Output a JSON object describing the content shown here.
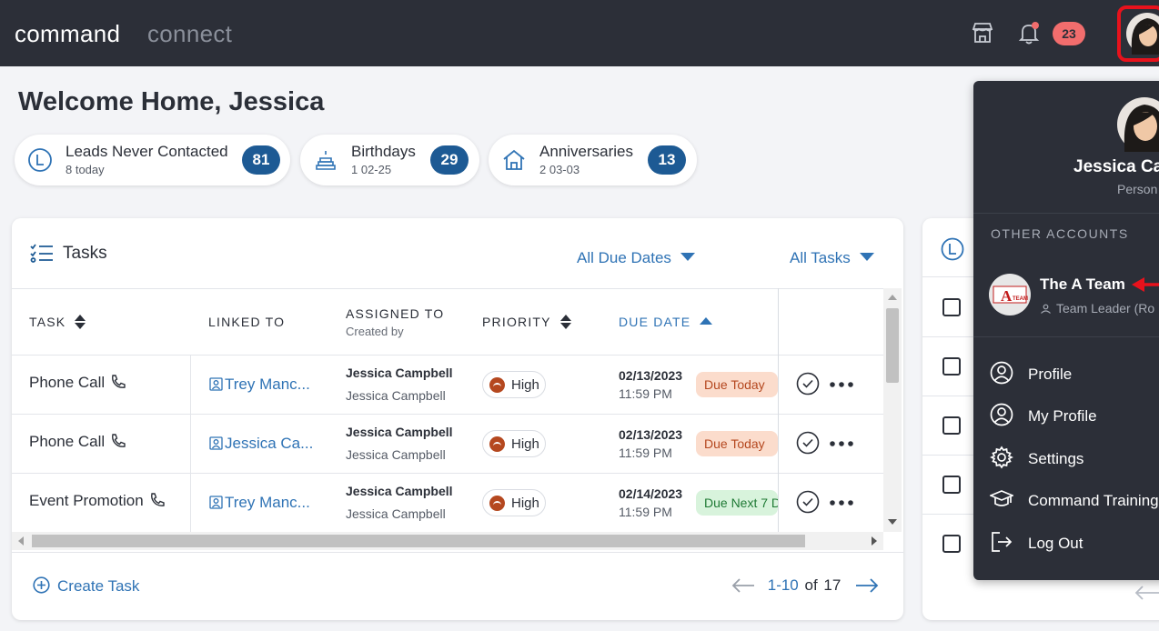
{
  "topbar": {
    "brand_primary": "command",
    "brand_secondary": "connect",
    "notification_count": "23",
    "colors": {
      "bar": "#2c2f38",
      "badge": "#f26d6d",
      "highlight": "#e8121c"
    },
    "icons": [
      "storefront-icon",
      "bell-icon",
      "user-avatar"
    ]
  },
  "welcome": {
    "title": "Welcome Home, Jessica"
  },
  "stats": [
    {
      "title": "Leads Never Contacted",
      "sub": "8 today",
      "count": "81",
      "icon": "lead-icon"
    },
    {
      "title": "Birthdays",
      "sub": "1 02-25",
      "count": "29",
      "icon": "cake-icon"
    },
    {
      "title": "Anniversaries",
      "sub": "2 03-03",
      "count": "13",
      "icon": "home-icon"
    }
  ],
  "tasks": {
    "title": "Tasks",
    "filters": {
      "due": "All Due Dates",
      "tasks": "All Tasks"
    },
    "columns": {
      "task": "TASK",
      "linked": "LINKED TO",
      "assigned": "ASSIGNED TO",
      "assigned_sub": "Created by",
      "priority": "PRIORITY",
      "due": "DUE DATE"
    },
    "rows": [
      {
        "task": "Phone Call",
        "linked": "Trey Manc...",
        "assigned": "Jessica Campbell",
        "created": "Jessica Campbell",
        "priority": "High",
        "date": "02/13/2023",
        "time": "11:59 PM",
        "status": "Due Today"
      },
      {
        "task": "Phone Call",
        "linked": "Jessica Ca...",
        "assigned": "Jessica Campbell",
        "created": "Jessica Campbell",
        "priority": "High",
        "date": "02/13/2023",
        "time": "11:59 PM",
        "status": "Due Today"
      },
      {
        "task": "Event Promotion",
        "linked": "Trey Manc...",
        "assigned": "Jessica Campbell",
        "created": "Jessica Campbell",
        "priority": "High",
        "date": "02/14/2023",
        "time": "11:59 PM",
        "status": "Due Next 7 D"
      }
    ],
    "create_label": "Create Task",
    "pager": {
      "range": "1-10",
      "of": "of",
      "total": "17"
    },
    "colors": {
      "link": "#2f73b5",
      "priority_high": "#b5481f",
      "due_today_bg": "#fbdccc",
      "due_next_bg": "#d8f3dc"
    }
  },
  "dropdown": {
    "user_name": "Jessica Ca",
    "user_role": "Person",
    "section": "OTHER ACCOUNTS",
    "account": {
      "name": "The A Team",
      "role": "Team Leader (Ro",
      "logo_text": "A",
      "logo_sub": "TEAM"
    },
    "items": [
      {
        "label": "Profile",
        "icon": "user-circle-icon"
      },
      {
        "label": "My Profile",
        "icon": "user-circle-icon"
      },
      {
        "label": "Settings",
        "icon": "gear-icon"
      },
      {
        "label": "Command Training",
        "icon": "graduation-cap-icon"
      },
      {
        "label": "Log Out",
        "icon": "logout-icon"
      }
    ]
  }
}
